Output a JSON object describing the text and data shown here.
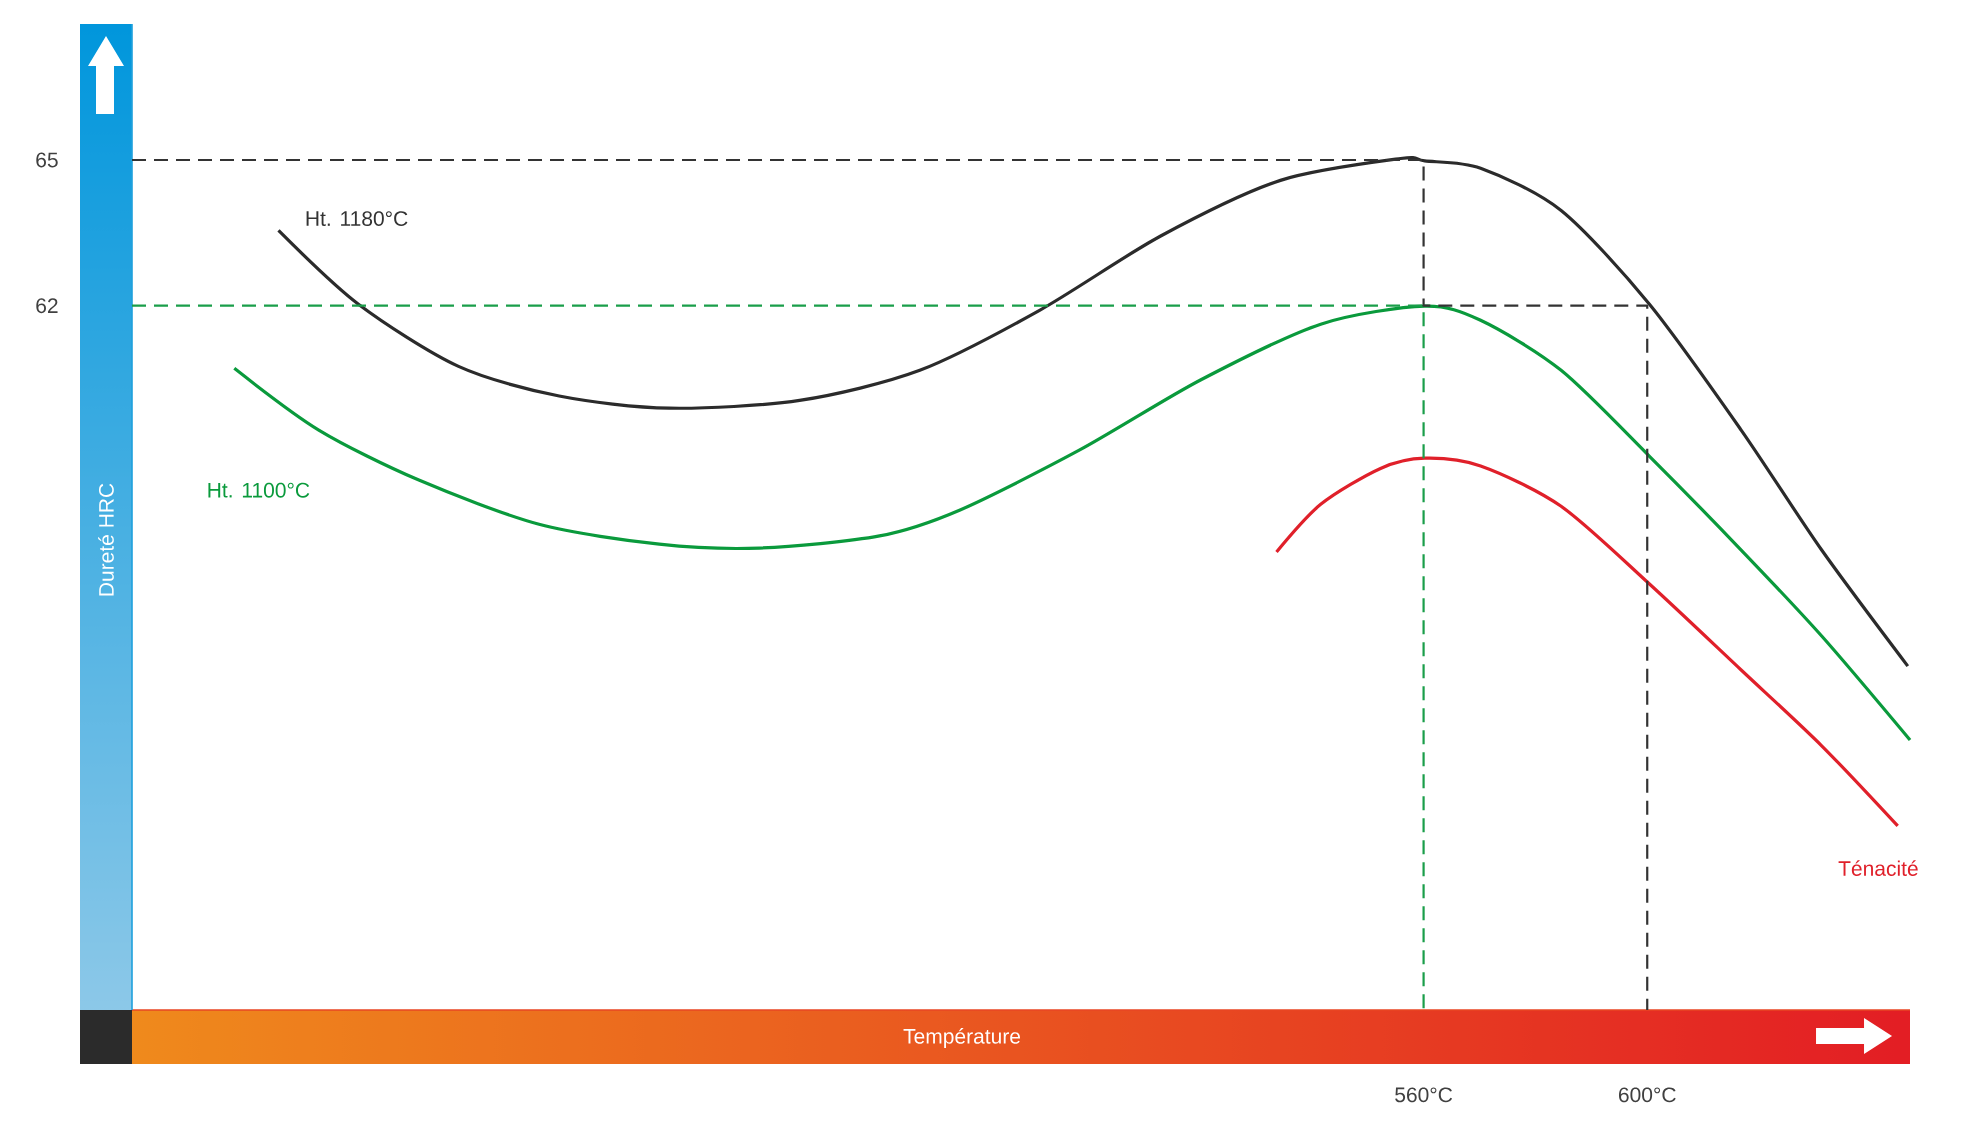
{
  "chart_data": {
    "type": "line",
    "xlabel": "Température",
    "ylabel": "Dureté HRC",
    "xlim": [
      329,
      647
    ],
    "ylim": [
      47.5,
      67.8
    ],
    "xticks": [
      {
        "value": 560,
        "label": "560°C"
      },
      {
        "value": 600,
        "label": "600°C"
      }
    ],
    "yticks": [
      62,
      65
    ],
    "marker": "none",
    "line_style": "solid",
    "series": [
      {
        "name": "Ht. 1180°C",
        "color": "#2b2b2b",
        "x": [
          355.2,
          369.5,
          387.4,
          405.4,
          425.1,
          448.4,
          469.9,
          491.4,
          512.9,
          534.4,
          555.9,
          560.2,
          570.2,
          584.6,
          600.4,
          616.8,
          631.2,
          646.6
        ],
        "values": [
          63.55,
          62.03,
          60.75,
          60.14,
          59.89,
          60.05,
          60.67,
          61.91,
          63.43,
          64.58,
          65.03,
          64.98,
          64.83,
          63.96,
          62.03,
          59.44,
          56.97,
          54.58
        ]
      },
      {
        "name": "Ht. 1100°C",
        "color": "#0a9a3c",
        "x": [
          347.3,
          362.4,
          380.3,
          401.8,
          423.3,
          441.2,
          462.7,
          477.0,
          498.5,
          520.1,
          541.6,
          560.2,
          570.2,
          584.6,
          600.4,
          616.8,
          631.2,
          647.0
        ],
        "values": [
          60.71,
          59.44,
          58.41,
          57.5,
          57.09,
          57.01,
          57.26,
          57.79,
          59.03,
          60.47,
          61.62,
          61.99,
          61.7,
          60.67,
          58.9,
          56.97,
          55.2,
          53.06
        ]
      },
      {
        "name": "Ténacité",
        "color": "#e0202a",
        "x": [
          533.7,
          541.6,
          552.3,
          560.2,
          570.2,
          584.6,
          600.4,
          616.8,
          631.2,
          644.8
        ],
        "values": [
          56.93,
          57.91,
          58.65,
          58.86,
          58.7,
          57.87,
          56.27,
          54.5,
          52.94,
          51.29
        ]
      },
      {
        "color": "#333333",
        "line_style": "dashed",
        "x": [
          329,
          560,
          560,
          600,
          600
        ],
        "values": [
          65,
          65,
          62,
          62,
          47.5
        ]
      },
      {
        "color": "#1a9e4a",
        "line_style": "dashed",
        "x": [
          329,
          560,
          560
        ],
        "values": [
          62,
          62,
          47.5
        ]
      }
    ]
  }
}
